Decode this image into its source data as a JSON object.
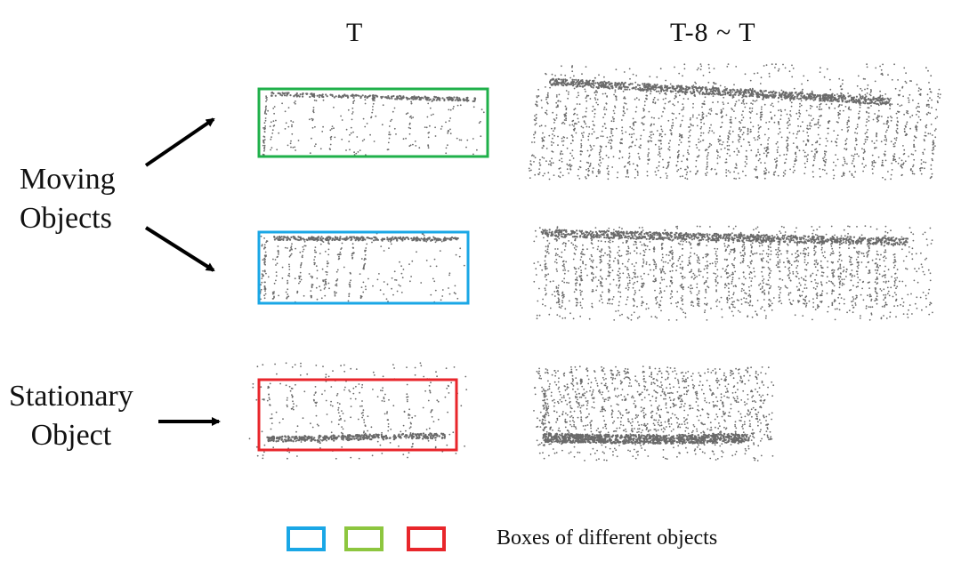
{
  "columns": {
    "single_frame": "T",
    "multi_frame": "T-8 ~ T"
  },
  "labels": {
    "moving": [
      "Moving",
      "Objects"
    ],
    "stationary": [
      "Stationary",
      "Object"
    ]
  },
  "legend": {
    "text": "Boxes of different objects",
    "colors": [
      "#1aa7e6",
      "#8dc63f",
      "#e8262b"
    ]
  },
  "box_colors": {
    "green": "#1fb04a",
    "blue": "#1aa7e6",
    "red": "#e8262b"
  },
  "point_color": "#6a6a6a"
}
